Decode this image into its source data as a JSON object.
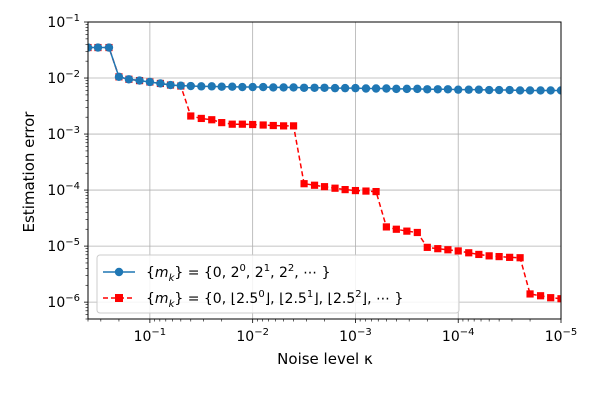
{
  "chart_data": {
    "type": "line",
    "title": "",
    "xlabel": "Noise level κ",
    "ylabel": "Estimation error",
    "x_scale": "log",
    "y_scale": "log",
    "x_reversed": true,
    "xlim": [
      0.4,
      1e-05
    ],
    "ylim": [
      5e-07,
      0.1
    ],
    "grid": true,
    "legend_position": "lower-left",
    "x_ticks": [
      {
        "value": 0.1,
        "base": "10",
        "exp": "−1"
      },
      {
        "value": 0.01,
        "base": "10",
        "exp": "−2"
      },
      {
        "value": 0.001,
        "base": "10",
        "exp": "−3"
      },
      {
        "value": 0.0001,
        "base": "10",
        "exp": "−4"
      },
      {
        "value": 1e-05,
        "base": "10",
        "exp": "−5"
      }
    ],
    "y_ticks": [
      {
        "value": 1e-06,
        "base": "10",
        "exp": "−6"
      },
      {
        "value": 1e-05,
        "base": "10",
        "exp": "−5"
      },
      {
        "value": 0.0001,
        "base": "10",
        "exp": "−4"
      },
      {
        "value": 0.001,
        "base": "10",
        "exp": "−3"
      },
      {
        "value": 0.01,
        "base": "10",
        "exp": "−2"
      },
      {
        "value": 0.1,
        "base": "10",
        "exp": "−1"
      }
    ],
    "series": [
      {
        "name": "{m_k} = {0, 2^0, 2^1, 2^2, ···}",
        "color": "#1f77b4",
        "linestyle": "solid",
        "marker": "circle",
        "x": [
          0.4,
          0.32,
          0.25,
          0.2,
          0.16,
          0.126,
          0.1,
          0.079,
          0.063,
          0.05,
          0.04,
          0.0316,
          0.025,
          0.02,
          0.0158,
          0.0126,
          0.01,
          0.0079,
          0.0063,
          0.005,
          0.004,
          0.00316,
          0.0025,
          0.002,
          0.00158,
          0.00126,
          0.001,
          0.00079,
          0.00063,
          0.0005,
          0.0004,
          0.000316,
          0.00025,
          0.0002,
          0.000158,
          0.000126,
          0.0001,
          7.9e-05,
          6.3e-05,
          5e-05,
          4e-05,
          3.16e-05,
          2.5e-05,
          2e-05,
          1.58e-05,
          1.26e-05,
          1e-05
        ],
        "y": [
          0.035,
          0.035,
          0.035,
          0.0105,
          0.0095,
          0.009,
          0.0085,
          0.008,
          0.0075,
          0.0073,
          0.0072,
          0.0071,
          0.0071,
          0.007,
          0.007,
          0.0069,
          0.0069,
          0.0069,
          0.0068,
          0.0068,
          0.0068,
          0.0067,
          0.0067,
          0.0067,
          0.0066,
          0.0066,
          0.0066,
          0.0065,
          0.0065,
          0.0065,
          0.0064,
          0.0064,
          0.0064,
          0.0063,
          0.0063,
          0.0063,
          0.0062,
          0.0062,
          0.0062,
          0.0061,
          0.0061,
          0.0061,
          0.006,
          0.006,
          0.006,
          0.006,
          0.006
        ]
      },
      {
        "name": "{m_k} = {0, ⌊2.5^0⌋, ⌊2.5^1⌋, ⌊2.5^2⌋, ···}",
        "color": "#ff0000",
        "linestyle": "dashed",
        "marker": "square",
        "x": [
          0.4,
          0.32,
          0.25,
          0.2,
          0.16,
          0.126,
          0.1,
          0.079,
          0.063,
          0.05,
          0.04,
          0.0316,
          0.025,
          0.02,
          0.0158,
          0.0126,
          0.01,
          0.0079,
          0.0063,
          0.005,
          0.004,
          0.00316,
          0.0025,
          0.002,
          0.00158,
          0.00126,
          0.001,
          0.00079,
          0.00063,
          0.0005,
          0.0004,
          0.000316,
          0.00025,
          0.0002,
          0.000158,
          0.000126,
          0.0001,
          7.9e-05,
          6.3e-05,
          5e-05,
          4e-05,
          3.16e-05,
          2.5e-05,
          2e-05,
          1.58e-05,
          1.26e-05,
          1e-05
        ],
        "y": [
          0.035,
          0.035,
          0.035,
          0.0105,
          0.0095,
          0.009,
          0.0085,
          0.008,
          0.0075,
          0.0072,
          0.0021,
          0.0019,
          0.0018,
          0.0016,
          0.0015,
          0.0015,
          0.00148,
          0.00145,
          0.00142,
          0.0014,
          0.0014,
          0.00013,
          0.000122,
          0.000115,
          0.000108,
          0.000102,
          9.8e-05,
          9.6e-05,
          9.4e-05,
          2.2e-05,
          2e-05,
          1.85e-05,
          1.75e-05,
          9.5e-06,
          9e-06,
          8.6e-06,
          8.2e-06,
          7.6e-06,
          7.1e-06,
          6.7e-06,
          6.5e-06,
          6.3e-06,
          6.2e-06,
          1.4e-06,
          1.3e-06,
          1.2e-06,
          1.15e-06
        ]
      }
    ]
  },
  "legend": {
    "entry1": {
      "pre": "{",
      "m": "m",
      "k": "k",
      "post": "} = {0, 2",
      "e0": "0",
      "mid1": ", 2",
      "e1": "1",
      "mid2": ", 2",
      "e2": "2",
      "end": ", ⋯ }"
    },
    "entry2": {
      "pre": "{",
      "m": "m",
      "k": "k",
      "post": "} = {0, ⌊2.5",
      "e0": "0",
      "mid1": "⌋, ⌊2.5",
      "e1": "1",
      "mid2": "⌋, ⌊2.5",
      "e2": "2",
      "end": "⌋, ⋯ }"
    }
  }
}
